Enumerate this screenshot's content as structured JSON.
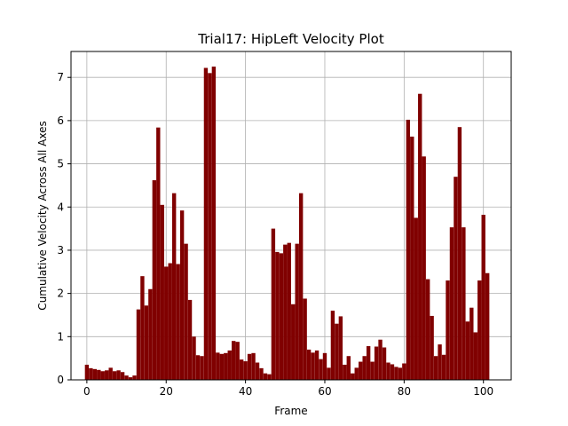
{
  "chart_data": {
    "type": "bar",
    "title": "Trial17: HipLeft Velocity Plot",
    "xlabel": "Frame",
    "ylabel": "Cumulative Velocity Across All Axes",
    "xlim": [
      -4,
      107
    ],
    "ylim": [
      0,
      7.6
    ],
    "xticks": [
      0,
      20,
      40,
      60,
      80,
      100
    ],
    "yticks": [
      0,
      1,
      2,
      3,
      4,
      5,
      6,
      7
    ],
    "grid": true,
    "bar_color": "#800000",
    "x": [
      0,
      1,
      2,
      3,
      4,
      5,
      6,
      7,
      8,
      9,
      10,
      11,
      12,
      13,
      14,
      15,
      16,
      17,
      18,
      19,
      20,
      21,
      22,
      23,
      24,
      25,
      26,
      27,
      28,
      29,
      30,
      31,
      32,
      33,
      34,
      35,
      36,
      37,
      38,
      39,
      40,
      41,
      42,
      43,
      44,
      45,
      46,
      47,
      48,
      49,
      50,
      51,
      52,
      53,
      54,
      55,
      56,
      57,
      58,
      59,
      60,
      61,
      62,
      63,
      64,
      65,
      66,
      67,
      68,
      69,
      70,
      71,
      72,
      73,
      74,
      75,
      76,
      77,
      78,
      79,
      80,
      81,
      82,
      83,
      84,
      85,
      86,
      87,
      88,
      89,
      90,
      91,
      92,
      93,
      94,
      95,
      96,
      97,
      98,
      99,
      100,
      101
    ],
    "values": [
      0.35,
      0.27,
      0.25,
      0.23,
      0.2,
      0.22,
      0.28,
      0.2,
      0.22,
      0.18,
      0.1,
      0.06,
      0.1,
      1.63,
      2.4,
      1.72,
      2.1,
      4.62,
      5.84,
      4.05,
      2.62,
      2.7,
      4.32,
      2.68,
      3.92,
      3.15,
      1.85,
      1.0,
      0.57,
      0.55,
      7.22,
      7.1,
      7.25,
      0.63,
      0.6,
      0.62,
      0.68,
      0.9,
      0.88,
      0.47,
      0.43,
      0.6,
      0.62,
      0.4,
      0.27,
      0.15,
      0.13,
      3.5,
      2.96,
      2.93,
      3.13,
      3.17,
      1.75,
      3.15,
      4.32,
      1.88,
      0.7,
      0.63,
      0.68,
      0.48,
      0.62,
      0.28,
      1.6,
      1.3,
      1.47,
      0.35,
      0.55,
      0.15,
      0.28,
      0.42,
      0.55,
      0.78,
      0.42,
      0.77,
      0.93,
      0.75,
      0.4,
      0.36,
      0.3,
      0.28,
      0.38,
      6.02,
      5.63,
      3.75,
      6.62,
      5.17,
      2.33,
      1.48,
      0.55,
      0.82,
      0.58,
      2.3,
      3.53,
      4.7,
      5.85,
      3.53,
      1.35,
      1.67,
      1.1,
      2.3,
      3.82,
      2.47
    ]
  }
}
